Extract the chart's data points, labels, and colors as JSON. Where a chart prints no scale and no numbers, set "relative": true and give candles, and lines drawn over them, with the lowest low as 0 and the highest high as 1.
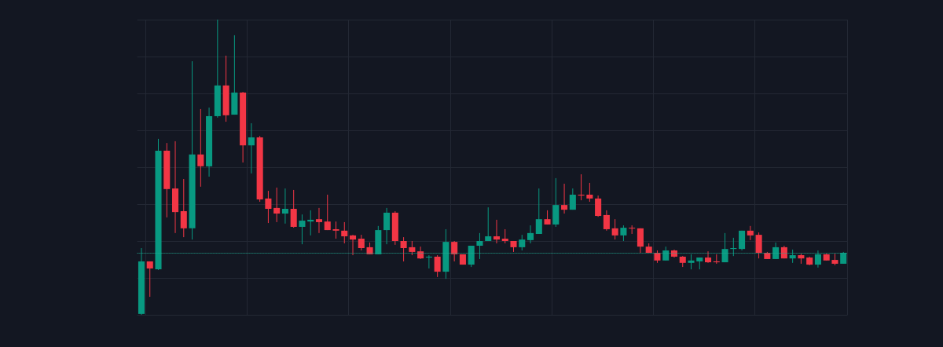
{
  "chart_data": {
    "type": "candlestick",
    "relative": true,
    "grid": true,
    "categories": [
      null,
      null,
      null,
      null,
      null,
      null,
      null,
      null,
      null,
      null,
      null,
      null,
      null,
      null,
      null,
      null,
      null,
      null,
      null,
      null,
      null,
      null,
      null,
      null,
      null,
      null,
      null,
      null,
      null,
      null,
      null,
      null,
      null,
      null,
      null,
      null,
      null,
      null,
      null,
      null,
      null,
      null,
      null,
      null,
      null,
      null,
      null,
      null,
      null,
      null,
      null,
      null,
      null,
      null,
      null,
      null,
      null,
      null,
      null,
      null,
      null,
      null,
      null,
      null,
      null,
      null,
      null,
      null,
      null,
      null,
      null,
      null,
      null,
      null,
      null,
      null,
      null,
      null,
      null,
      null,
      null,
      null,
      null,
      null
    ],
    "ohlc": [
      [
        0.003,
        0.226,
        0,
        0.181
      ],
      [
        0.181,
        0.181,
        0.061,
        0.157
      ],
      [
        0.154,
        0.596,
        0.152,
        0.556
      ],
      [
        0.556,
        0.582,
        0.33,
        0.426
      ],
      [
        0.428,
        0.588,
        0.277,
        0.348
      ],
      [
        0.351,
        0.46,
        0.263,
        0.293
      ],
      [
        0.293,
        0.859,
        0.255,
        0.543
      ],
      [
        0.543,
        0.697,
        0.434,
        0.503
      ],
      [
        0.503,
        0.702,
        0.468,
        0.673
      ],
      [
        0.673,
        1,
        0.668,
        0.777
      ],
      [
        0.777,
        0.878,
        0.654,
        0.676
      ],
      [
        0.678,
        0.947,
        0.678,
        0.753
      ],
      [
        0.753,
        0.755,
        0.516,
        0.574
      ],
      [
        0.574,
        0.649,
        0.479,
        0.601
      ],
      [
        0.601,
        0.606,
        0.383,
        0.391
      ],
      [
        0.394,
        0.42,
        0.311,
        0.359
      ],
      [
        0.362,
        0.431,
        0.314,
        0.343
      ],
      [
        0.343,
        0.428,
        0.309,
        0.359
      ],
      [
        0.359,
        0.423,
        0.295,
        0.298
      ],
      [
        0.298,
        0.34,
        0.239,
        0.319
      ],
      [
        0.316,
        0.354,
        0.269,
        0.322
      ],
      [
        0.324,
        0.362,
        0.277,
        0.314
      ],
      [
        0.316,
        0.407,
        0.287,
        0.287
      ],
      [
        0.29,
        0.316,
        0.258,
        0.285
      ],
      [
        0.285,
        0.314,
        0.242,
        0.266
      ],
      [
        0.269,
        0.271,
        0.202,
        0.255
      ],
      [
        0.258,
        0.271,
        0.218,
        0.226
      ],
      [
        0.229,
        0.245,
        0.205,
        0.205
      ],
      [
        0.205,
        0.301,
        0.205,
        0.287
      ],
      [
        0.287,
        0.362,
        0.239,
        0.346
      ],
      [
        0.346,
        0.351,
        0.237,
        0.25
      ],
      [
        0.25,
        0.263,
        0.181,
        0.226
      ],
      [
        0.229,
        0.25,
        0.202,
        0.213
      ],
      [
        0.215,
        0.231,
        0.189,
        0.191
      ],
      [
        0.194,
        0.202,
        0.157,
        0.197
      ],
      [
        0.197,
        0.202,
        0.128,
        0.146
      ],
      [
        0.146,
        0.29,
        0.122,
        0.247
      ],
      [
        0.247,
        0.25,
        0.181,
        0.205
      ],
      [
        0.205,
        0.205,
        0.17,
        0.17
      ],
      [
        0.17,
        0.234,
        0.162,
        0.234
      ],
      [
        0.234,
        0.277,
        0.189,
        0.25
      ],
      [
        0.25,
        0.364,
        0.25,
        0.266
      ],
      [
        0.266,
        0.322,
        0.242,
        0.255
      ],
      [
        0.258,
        0.29,
        0.242,
        0.25
      ],
      [
        0.25,
        0.25,
        0.213,
        0.229
      ],
      [
        0.229,
        0.271,
        0.218,
        0.255
      ],
      [
        0.253,
        0.303,
        0.242,
        0.277
      ],
      [
        0.274,
        0.428,
        0.274,
        0.324
      ],
      [
        0.324,
        0.354,
        0.306,
        0.306
      ],
      [
        0.306,
        0.463,
        0.298,
        0.372
      ],
      [
        0.372,
        0.444,
        0.343,
        0.356
      ],
      [
        0.356,
        0.428,
        0.356,
        0.407
      ],
      [
        0.407,
        0.476,
        0.388,
        0.404
      ],
      [
        0.407,
        0.447,
        0.383,
        0.394
      ],
      [
        0.394,
        0.404,
        0.332,
        0.335
      ],
      [
        0.338,
        0.354,
        0.285,
        0.29
      ],
      [
        0.293,
        0.324,
        0.255,
        0.269
      ],
      [
        0.269,
        0.303,
        0.25,
        0.295
      ],
      [
        0.295,
        0.303,
        0.274,
        0.293
      ],
      [
        0.293,
        0.293,
        0.21,
        0.231
      ],
      [
        0.231,
        0.242,
        0.21,
        0.21
      ],
      [
        0.21,
        0.218,
        0.176,
        0.184
      ],
      [
        0.184,
        0.231,
        0.184,
        0.218
      ],
      [
        0.218,
        0.221,
        0.194,
        0.197
      ],
      [
        0.197,
        0.199,
        0.162,
        0.176
      ],
      [
        0.176,
        0.205,
        0.154,
        0.184
      ],
      [
        0.181,
        0.194,
        0.154,
        0.194
      ],
      [
        0.194,
        0.215,
        0.176,
        0.178
      ],
      [
        0.181,
        0.205,
        0.173,
        0.178
      ],
      [
        0.178,
        0.277,
        0.178,
        0.223
      ],
      [
        0.223,
        0.261,
        0.199,
        0.226
      ],
      [
        0.223,
        0.285,
        0.218,
        0.285
      ],
      [
        0.285,
        0.301,
        0.253,
        0.269
      ],
      [
        0.271,
        0.279,
        0.191,
        0.21
      ],
      [
        0.21,
        0.213,
        0.189,
        0.189
      ],
      [
        0.189,
        0.245,
        0.189,
        0.229
      ],
      [
        0.229,
        0.234,
        0.191,
        0.191
      ],
      [
        0.191,
        0.221,
        0.176,
        0.202
      ],
      [
        0.202,
        0.207,
        0.173,
        0.191
      ],
      [
        0.194,
        0.197,
        0.168,
        0.17
      ],
      [
        0.17,
        0.218,
        0.16,
        0.205
      ],
      [
        0.205,
        0.207,
        0.184,
        0.184
      ],
      [
        0.186,
        0.207,
        0.168,
        0.173
      ],
      [
        0.173,
        0.213,
        0.173,
        0.21
      ]
    ],
    "ref_lines": [
      {
        "axis": "y",
        "value": 0.21,
        "color": "#22ab94",
        "line_style": "dotted"
      }
    ]
  }
}
